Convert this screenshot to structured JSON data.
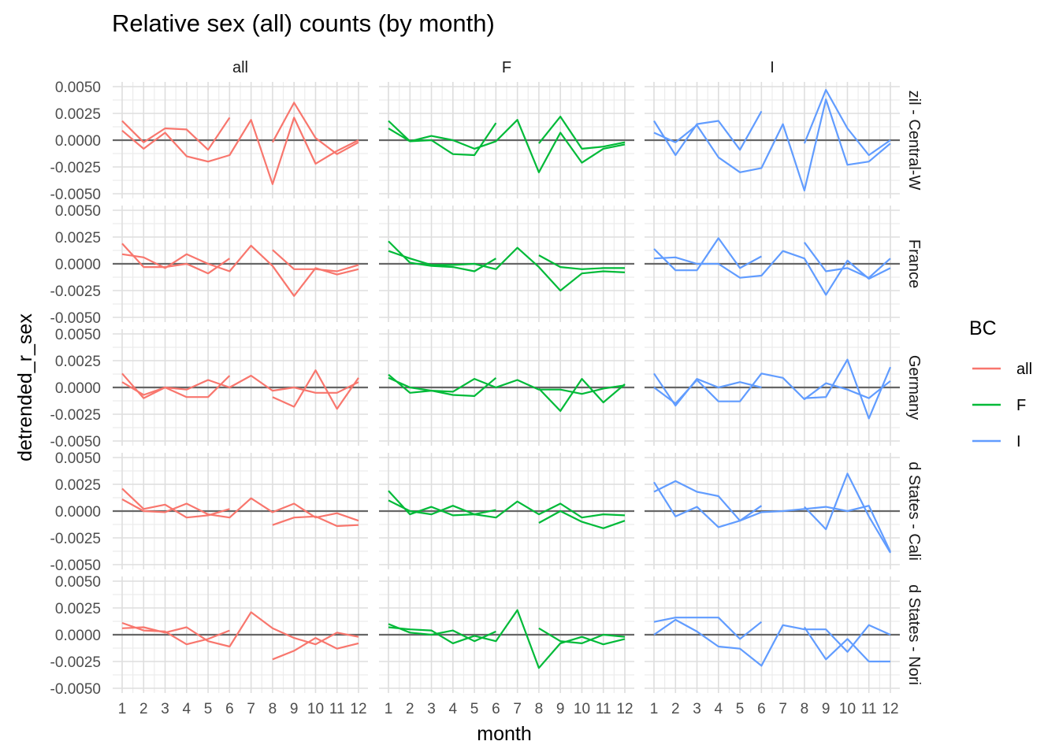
{
  "chart_data": {
    "type": "line",
    "title": "Relative sex (all) counts (by month)",
    "xlabel": "month",
    "ylabel": "detrended_r_sex",
    "x": [
      1,
      2,
      3,
      4,
      5,
      6,
      7,
      8,
      9,
      10,
      11,
      12
    ],
    "x_tick_labels": [
      "1",
      "2",
      "3",
      "4",
      "5",
      "6",
      "7",
      "8",
      "9",
      "10",
      "11",
      "12"
    ],
    "ylim": [
      -0.005,
      0.005
    ],
    "y_ticks": [
      -0.005,
      -0.0025,
      0,
      0.0025,
      0.005
    ],
    "y_tick_labels": [
      "-0.0050",
      "-0.0025",
      "0.0000",
      "0.0025",
      "0.0050"
    ],
    "grid": true,
    "reference_line_y": 0,
    "legend": {
      "title": "BC",
      "position": "right",
      "entries": [
        "all",
        "F",
        "I"
      ]
    },
    "colors": {
      "all": "#F8766D",
      "F": "#00BA38",
      "I": "#619CFF"
    },
    "facet_cols": [
      "all",
      "F",
      "I"
    ],
    "facet_rows": [
      "zil - Central-W",
      "France",
      "Germany",
      "d States - Cali",
      "d States - Nori"
    ],
    "panels": [
      [
        {
          "series": [
            [
              0.0018,
              -0.0002,
              0.0011,
              0.001,
              -0.0009,
              0.0021,
              null,
              -0.0002,
              0.0035,
              0.0002,
              -0.0013,
              -0.0002
            ],
            [
              0.0009,
              -0.0008,
              0.0007,
              -0.0015,
              -0.002,
              -0.0014,
              0.0019,
              -0.0041,
              0.0021,
              -0.0022,
              -0.001,
              0.0
            ]
          ]
        },
        {
          "series": [
            [
              0.0018,
              -0.0001,
              0.0,
              -0.0013,
              -0.0014,
              0.0016,
              null,
              -0.0003,
              0.0022,
              -0.0008,
              -0.0006,
              -0.0002
            ],
            [
              0.0011,
              -0.0001,
              0.0004,
              0.0,
              -0.0008,
              -0.0001,
              0.0019,
              -0.003,
              0.0007,
              -0.0021,
              -0.0008,
              -0.0004
            ]
          ]
        },
        {
          "series": [
            [
              0.0018,
              -0.0014,
              0.0015,
              0.0018,
              -0.0009,
              0.0027,
              null,
              -0.0003,
              0.0047,
              0.0011,
              -0.0014,
              0.0
            ],
            [
              0.0007,
              -0.0002,
              0.0014,
              -0.0016,
              -0.003,
              -0.0026,
              0.0015,
              -0.0047,
              0.0038,
              -0.0023,
              -0.002,
              -0.0003
            ]
          ]
        }
      ],
      [
        {
          "series": [
            [
              0.0019,
              -0.0003,
              -0.0003,
              0.0,
              -0.0009,
              0.0005,
              null,
              0.0013,
              -0.0005,
              -0.0005,
              -0.0007,
              -0.0001
            ],
            [
              0.0009,
              0.0006,
              -0.0004,
              0.0009,
              0.0,
              -0.0007,
              0.0017,
              -0.0002,
              -0.003,
              -0.0004,
              -0.001,
              -0.0005
            ]
          ]
        },
        {
          "series": [
            [
              0.0021,
              0.0001,
              -0.0002,
              -0.0003,
              -0.0007,
              0.0005,
              null,
              0.0008,
              -0.0003,
              -0.0005,
              -0.0004,
              -0.0004
            ],
            [
              0.0012,
              0.0005,
              -0.0001,
              -0.0001,
              0.0,
              -0.0005,
              0.0015,
              -0.0003,
              -0.0025,
              -0.0009,
              -0.0007,
              -0.0008
            ]
          ]
        },
        {
          "series": [
            [
              0.0014,
              -0.0006,
              -0.0006,
              0.0024,
              -0.0004,
              0.0007,
              null,
              0.002,
              -0.0007,
              -0.0004,
              -0.0013,
              0.0005
            ],
            [
              0.0005,
              0.0006,
              0.0,
              0.0,
              -0.0013,
              -0.0011,
              0.0012,
              0.0005,
              -0.0029,
              0.0003,
              -0.0014,
              -0.0004
            ]
          ]
        }
      ],
      [
        {
          "series": [
            [
              0.0013,
              -0.001,
              0.0,
              -0.0009,
              -0.0009,
              0.0011,
              null,
              -0.0009,
              -0.0018,
              0.0016,
              -0.002,
              0.0009
            ],
            [
              0.0005,
              -0.0007,
              0.0,
              -0.0002,
              0.0007,
              0.0,
              0.0011,
              -0.0003,
              0.0,
              -0.0005,
              -0.0005,
              0.0005
            ]
          ]
        },
        {
          "series": [
            [
              0.0012,
              -0.0005,
              -0.0003,
              -0.0007,
              -0.0008,
              0.0009,
              null,
              -0.0001,
              -0.0022,
              0.0008,
              -0.0014,
              0.0003
            ],
            [
              0.0009,
              0.0,
              -0.0003,
              -0.0004,
              0.0008,
              0.0,
              0.0007,
              -0.0002,
              -0.0002,
              -0.0006,
              -0.0001,
              0.0002
            ]
          ]
        },
        {
          "series": [
            [
              0.0013,
              -0.0017,
              0.0008,
              0.0,
              0.0005,
              0.0,
              null,
              -0.001,
              -0.0009,
              0.0026,
              -0.0029,
              0.0019
            ],
            [
              0.0,
              -0.0015,
              0.0007,
              -0.0013,
              -0.0013,
              0.0013,
              0.0009,
              -0.0011,
              0.0004,
              -0.0002,
              -0.001,
              0.0006
            ]
          ]
        }
      ],
      [
        {
          "series": [
            [
              0.0021,
              0.0002,
              0.0006,
              -0.0006,
              -0.0004,
              0.0002,
              null,
              -0.0013,
              -0.0006,
              -0.0005,
              -0.0014,
              -0.0013
            ],
            [
              0.0011,
              0.0,
              -0.0001,
              0.0007,
              -0.0003,
              -0.0006,
              0.0012,
              -0.0001,
              0.0007,
              -0.0006,
              -0.0002,
              -0.0009
            ]
          ]
        },
        {
          "series": [
            [
              0.0019,
              -0.0003,
              0.0004,
              -0.0004,
              -0.0003,
              0.0001,
              null,
              -0.0011,
              0.0,
              -0.001,
              -0.0016,
              -0.0009
            ],
            [
              0.001,
              0.0,
              -0.0003,
              0.0005,
              -0.0003,
              -0.0006,
              0.0009,
              -0.0003,
              0.0007,
              -0.0006,
              -0.0003,
              -0.0004
            ]
          ]
        },
        {
          "series": [
            [
              0.0027,
              -0.0005,
              0.0004,
              -0.0015,
              -0.0009,
              0.0005,
              null,
              0.0004,
              -0.0017,
              0.0035,
              -0.0005,
              -0.0039
            ],
            [
              0.0018,
              0.0028,
              0.0018,
              0.0014,
              -0.0009,
              -0.0001,
              0.0,
              0.0002,
              0.0004,
              0.0,
              0.0005,
              -0.0038
            ]
          ]
        }
      ],
      [
        {
          "series": [
            [
              0.0011,
              0.0004,
              0.0003,
              -0.0009,
              -0.0004,
              0.0004,
              null,
              -0.0023,
              -0.0015,
              -0.0003,
              -0.0013,
              -0.0008
            ],
            [
              0.0006,
              0.0007,
              0.0002,
              0.0007,
              -0.0006,
              -0.0011,
              0.0021,
              0.0006,
              -0.0003,
              -0.0009,
              0.0002,
              -0.0002
            ]
          ]
        },
        {
          "series": [
            [
              0.001,
              0.0002,
              0.0,
              0.0004,
              -0.0006,
              0.0003,
              null,
              0.0006,
              -0.0006,
              -0.0008,
              0.0,
              -0.0002
            ],
            [
              0.0007,
              0.0005,
              0.0004,
              -0.0008,
              -0.0001,
              -0.0006,
              0.0023,
              -0.0031,
              -0.0008,
              -0.0002,
              -0.0009,
              -0.0004
            ]
          ]
        },
        {
          "series": [
            [
              0.0012,
              0.0016,
              0.0016,
              0.0016,
              -0.0004,
              0.0012,
              null,
              0.0007,
              -0.0023,
              -0.0004,
              -0.0025,
              -0.0025
            ],
            [
              0.0,
              0.0014,
              0.0003,
              -0.0011,
              -0.0013,
              -0.0029,
              0.0009,
              0.0005,
              0.0005,
              -0.0016,
              0.0009,
              0.0
            ]
          ]
        }
      ]
    ]
  }
}
